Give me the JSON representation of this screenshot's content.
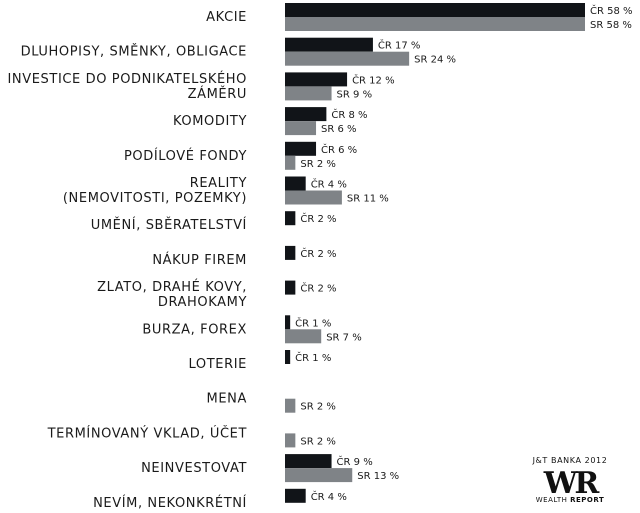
{
  "chart_data": {
    "type": "bar",
    "orientation": "horizontal",
    "categories": [
      [
        "AKCIE"
      ],
      [
        "DLUHOPISY, SMĚNKY, OBLIGACE"
      ],
      [
        "INVESTICE DO PODNIKATELSKÉHO",
        "ZÁMĚRU"
      ],
      [
        "KOMODITY"
      ],
      [
        "PODÍLOVÉ FONDY"
      ],
      [
        "REALITY",
        "(NEMOVITOSTI, POZEMKY)"
      ],
      [
        "UMĚNÍ, SBĚRATELSTVÍ"
      ],
      [
        "NÁKUP FIREM"
      ],
      [
        "ZLATO, DRAHÉ KOVY,",
        "DRAHOKAMY"
      ],
      [
        "BURZA, FOREX"
      ],
      [
        "LOTERIE"
      ],
      [
        "MENA"
      ],
      [
        "TERMÍNOVANÝ VKLAD, ÚČET"
      ],
      [
        "NEINVESTOVAT"
      ],
      [
        "NEVÍM, NEKONKRÉTNÍ"
      ]
    ],
    "series": [
      {
        "name": "ČR",
        "color": "#111418",
        "values": [
          58,
          17,
          12,
          8,
          6,
          4,
          2,
          2,
          2,
          1,
          1,
          null,
          null,
          9,
          4
        ],
        "labels": [
          "ČR 58 %",
          "ČR 17 %",
          "ČR 12 %",
          "ČR 8 %",
          "ČR 6 %",
          "ČR 4 %",
          "ČR 2 %",
          "ČR 2 %",
          "ČR 2 %",
          "ČR 1 %",
          "ČR 1 %",
          null,
          null,
          "ČR 9 %",
          "ČR 4 %"
        ]
      },
      {
        "name": "SR",
        "color": "#7f8387",
        "values": [
          58,
          24,
          9,
          6,
          2,
          11,
          null,
          null,
          null,
          7,
          null,
          2,
          2,
          13,
          null
        ],
        "labels": [
          "SR 58 %",
          "SR 24 %",
          "SR 9 %",
          "SR 6 %",
          "SR 2 %",
          "SR 11 %",
          null,
          null,
          null,
          "SR 7 %",
          null,
          "SR 2 %",
          "SR 2 %",
          "SR 13 %",
          null
        ]
      }
    ],
    "xlim": [
      0,
      58
    ],
    "grid": false
  },
  "branding": {
    "top": "J&T BANKA 2012",
    "mark": "WR",
    "bottom_light": "WEALTH",
    "bottom_bold": "REPORT"
  }
}
